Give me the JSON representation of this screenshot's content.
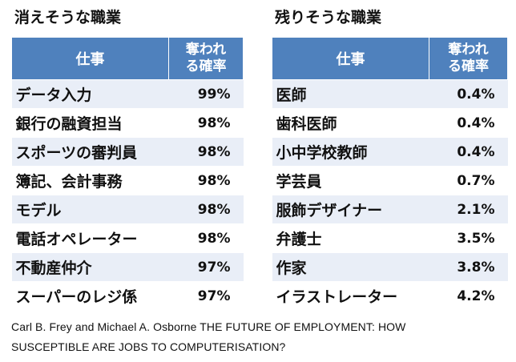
{
  "left_panel": {
    "title": "消えそうな職業",
    "header_job": "仕事",
    "header_rate_line1": "奪われ",
    "header_rate_line2": "る確率",
    "rows": [
      {
        "job": "データ入力",
        "rate": "99%"
      },
      {
        "job": "銀行の融資担当",
        "rate": "98%"
      },
      {
        "job": "スポーツの審判員",
        "rate": "98%"
      },
      {
        "job": "簿記、会計事務",
        "rate": "98%"
      },
      {
        "job": "モデル",
        "rate": "98%"
      },
      {
        "job": "電話オペレーター",
        "rate": "98%"
      },
      {
        "job": "不動産仲介",
        "rate": "97%"
      },
      {
        "job": "スーパーのレジ係",
        "rate": "97%"
      }
    ]
  },
  "right_panel": {
    "title": "残りそうな職業",
    "header_job": "仕事",
    "header_rate_line1": "奪われ",
    "header_rate_line2": "る確率",
    "rows": [
      {
        "job": "医師",
        "rate": "0.4%"
      },
      {
        "job": "歯科医師",
        "rate": "0.4%"
      },
      {
        "job": "小中学校教師",
        "rate": "0.4%"
      },
      {
        "job": "学芸員",
        "rate": "0.7%"
      },
      {
        "job": "服飾デザイナー",
        "rate": "2.1%"
      },
      {
        "job": "弁護士",
        "rate": "3.5%"
      },
      {
        "job": "作家",
        "rate": "3.8%"
      },
      {
        "job": "イラストレーター",
        "rate": "4.2%"
      }
    ]
  },
  "citation": {
    "line1": "Carl B. Frey and Michael A. Osborne  THE FUTURE OF EMPLOYMENT: HOW",
    "line2": "SUSCEPTIBLE ARE JOBS TO COMPUTERISATION?"
  },
  "colors": {
    "header_bg": "#4f81bd",
    "stripe_bg": "#e9eef7"
  }
}
